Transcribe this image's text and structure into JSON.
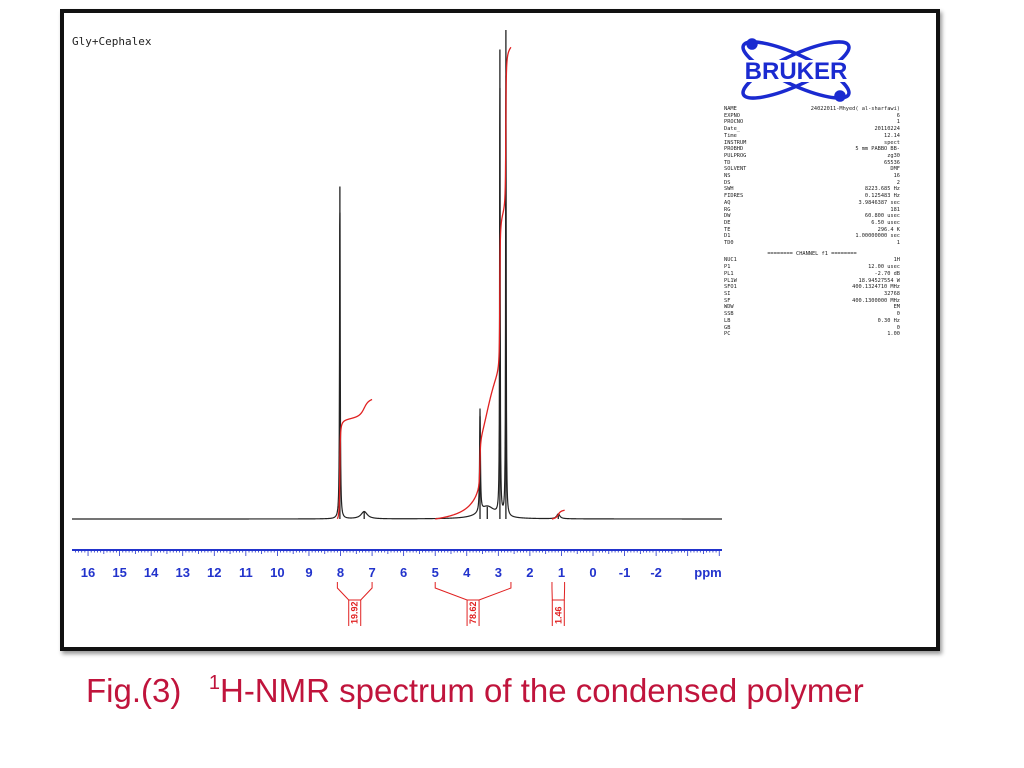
{
  "sample_title": "Gly+Cephalex",
  "logo": {
    "text": "BRUKER",
    "color": "#1a2ad0"
  },
  "caption": {
    "prefix": "Fig.(3)",
    "superscript": "1",
    "text": "H-NMR spectrum of the condensed polymer",
    "color": "#c0143c"
  },
  "parameters": [
    [
      "NAME",
      "24022011-Mhyed( al-sharfawi)"
    ],
    [
      "EXPNO",
      "6"
    ],
    [
      "PROCNO",
      "1"
    ],
    [
      "Date_",
      "20110224"
    ],
    [
      "Time",
      "12.14"
    ],
    [
      "INSTRUM",
      "spect"
    ],
    [
      "PROBHD",
      "5 mm PABBO BB-"
    ],
    [
      "PULPROG",
      "zg30"
    ],
    [
      "TD",
      "65536"
    ],
    [
      "SOLVENT",
      "DMF"
    ],
    [
      "NS",
      "16"
    ],
    [
      "DS",
      "2"
    ],
    [
      "SWH",
      "8223.685 Hz"
    ],
    [
      "FIDRES",
      "0.125483 Hz"
    ],
    [
      "AQ",
      "3.9846387 sec"
    ],
    [
      "RG",
      "181"
    ],
    [
      "DW",
      "60.800 usec"
    ],
    [
      "DE",
      "6.50 usec"
    ],
    [
      "TE",
      "296.4 K"
    ],
    [
      "D1",
      "1.00000000 sec"
    ],
    [
      "TD0",
      "1"
    ]
  ],
  "channel_header": "======== CHANNEL f1 ========",
  "channel_parameters": [
    [
      "NUC1",
      "1H"
    ],
    [
      "P1",
      "12.00 usec"
    ],
    [
      "PL1",
      "-2.70 dB"
    ],
    [
      "PL1W",
      "18.94527554 W"
    ],
    [
      "SFO1",
      "400.1324710 MHz"
    ],
    [
      "SI",
      "32768"
    ],
    [
      "SF",
      "400.1300000 MHz"
    ],
    [
      "WDW",
      "EM"
    ],
    [
      "SSB",
      "0"
    ],
    [
      "LB",
      "0.30 Hz"
    ],
    [
      "GB",
      "0"
    ],
    [
      "PC",
      "1.00"
    ]
  ],
  "chart_data": {
    "type": "line",
    "title": "",
    "xlabel": "ppm",
    "xlim": [
      16.5,
      -2.7
    ],
    "x_reversed": true,
    "x_ticks": [
      "16",
      "15",
      "14",
      "13",
      "12",
      "11",
      "10",
      "9",
      "8",
      "7",
      "6",
      "5",
      "4",
      "3",
      "2",
      "1",
      "0",
      "-1",
      "-2"
    ],
    "grid": false,
    "spectrum_color": "#222222",
    "integral_color": "#e02020",
    "axis_color": "#2233cc",
    "peaks": [
      {
        "ppm": 8.02,
        "relative_intensity": 0.68,
        "width": 0.012
      },
      {
        "ppm": 7.25,
        "relative_intensity": 0.015,
        "width": 0.12
      },
      {
        "ppm": 3.58,
        "relative_intensity": 0.21,
        "width": 0.015
      },
      {
        "ppm": 3.35,
        "relative_intensity": 0.025,
        "width": 0.3
      },
      {
        "ppm": 2.95,
        "relative_intensity": 0.96,
        "width": 0.01
      },
      {
        "ppm": 2.76,
        "relative_intensity": 1.0,
        "width": 0.01
      },
      {
        "ppm": 1.1,
        "relative_intensity": 0.01,
        "width": 0.06
      }
    ],
    "integrals": [
      {
        "from_ppm": 8.1,
        "to_ppm": 7.0,
        "value": "19.92"
      },
      {
        "from_ppm": 5.0,
        "to_ppm": 2.6,
        "value": "78.62"
      },
      {
        "from_ppm": 1.3,
        "to_ppm": 0.9,
        "value": "1.46"
      }
    ]
  }
}
